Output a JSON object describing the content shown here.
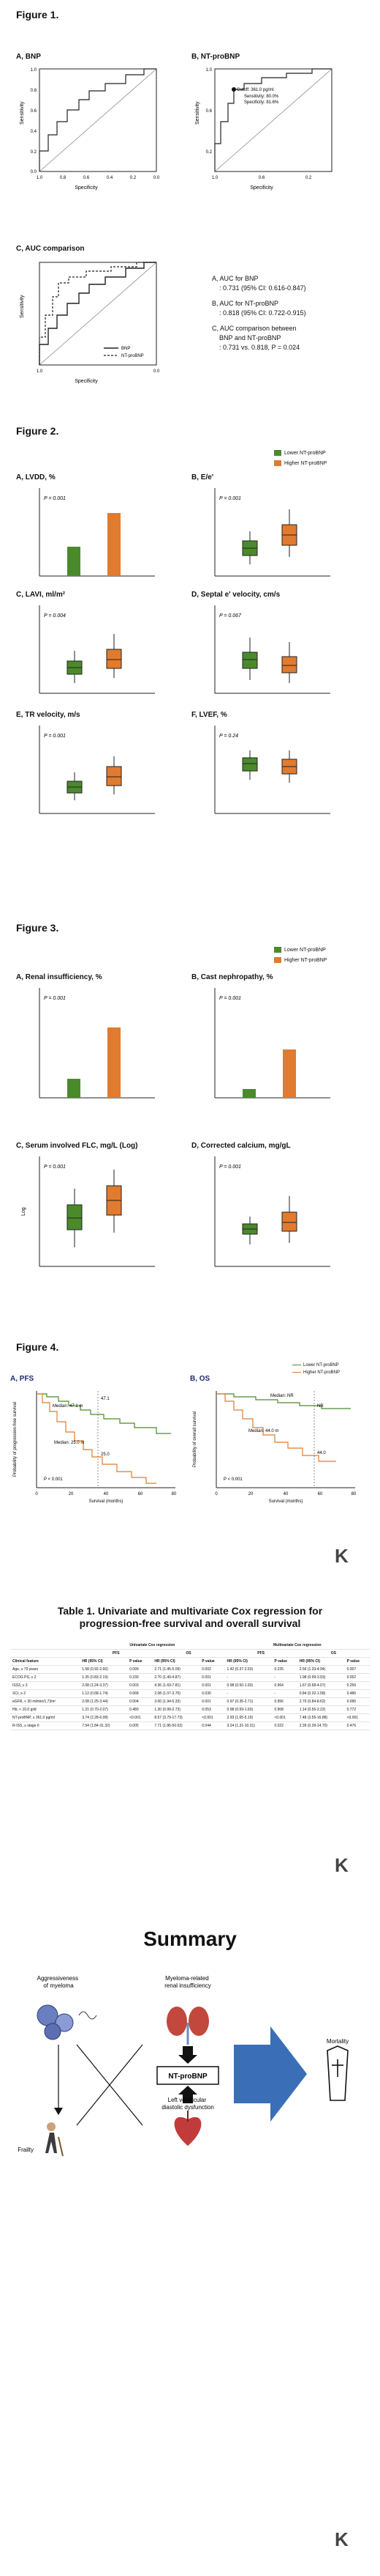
{
  "figure1": {
    "title": "Figure 1.",
    "panelA": {
      "label": "A, BNP",
      "ylabel": "Sensitivity",
      "xlabel": "Specificity"
    },
    "panelB": {
      "label": "B, NT-proBNP",
      "ylabel": "Sensitivity",
      "xlabel": "Specificity",
      "cutoff": "Cutoff: 361.0 pg/ml",
      "sens": "Sensitivity: 80.0%",
      "spec": "Specificity: 81.6%"
    },
    "panelC": {
      "label": "C, AUC comparison",
      "ylabel": "Sensitivity",
      "xlabel": "Specificity",
      "legend1": "BNP",
      "legend2": "NT-proBNP"
    },
    "ticks_y": [
      "1.0",
      "0.8",
      "0.6",
      "0.4",
      "0.2",
      "0.0"
    ],
    "ticks_x": [
      "1.0",
      "0.8",
      "0.6",
      "0.4",
      "0.2",
      "0.0"
    ],
    "notes": [
      {
        "head": "A,  AUC for BNP",
        "body": ": 0.731 (95% CI: 0.616-0.847)"
      },
      {
        "head": "B,  AUC for NT-proBNP",
        "body": ": 0.818 (95% CI: 0.722-0.915)"
      },
      {
        "head": "C,  AUC comparison between",
        "body": "BNP and NT-proBNP",
        "body2": ": 0.731 vs. 0.818, P = 0.024"
      }
    ]
  },
  "figure2": {
    "title": "Figure 2.",
    "legend_lower": "Lower NT-proBNP",
    "legend_higher": "Higher NT-proBNP",
    "panels": [
      {
        "label": "A, LVDD, %",
        "p": "P = 0.001"
      },
      {
        "label": "B, E/e'",
        "p": "P = 0.001"
      },
      {
        "label": "C, LAVI, ml/m²",
        "p": "P = 0.004"
      },
      {
        "label": "D, Septal e' velocity, cm/s",
        "p": "P = 0.067"
      },
      {
        "label": "E, TR velocity, m/s",
        "p": "P = 0.001"
      },
      {
        "label": "F, LVEF, %",
        "p": "P = 0.24"
      }
    ]
  },
  "figure3": {
    "title": "Figure 3.",
    "legend_lower": "Lower NT-proBNP",
    "legend_higher": "Higher NT-proBNP",
    "panels": [
      {
        "label": "A, Renal insufficiency, %",
        "p": "P = 0.001"
      },
      {
        "label": "B, Cast nephropathy, %",
        "p": "P = 0.001"
      },
      {
        "label": "C, Serum involved FLC, mg/L (Log)",
        "p": "P = 0.001",
        "ylabel": "Log"
      },
      {
        "label": "D, Corrected calcium, mg/gL",
        "p": "P = 0.001"
      }
    ]
  },
  "figure4": {
    "title": "Figure 4.",
    "panelA": {
      "label": "A, PFS",
      "ylabel": "Probability of progression-free survival",
      "xlabel": "Survival (months)",
      "p": "P < 0.001",
      "median_low": "Median: 47.1 m",
      "median_high": "Median: 25.0 m",
      "m1": "25.0",
      "m2": "47.1"
    },
    "panelB": {
      "label": "B, OS",
      "ylabel": "Probability of overall survival",
      "xlabel": "Survival (months)",
      "p": "P < 0.001",
      "median_low": "Median: NR",
      "median_high": "Median: 44.0 m",
      "m1": "44.0",
      "m2": "NR"
    },
    "legend_lower": "Lower NT-proBNP",
    "legend_higher": "Higher NT-proBNP",
    "xticks": [
      "0",
      "20",
      "40",
      "60",
      "80"
    ]
  },
  "table1": {
    "title_line1": "Table 1. Univariate and multivariate Cox regression for",
    "title_line2": "progression-free survival and overall survival",
    "group_uni": "Univariate Cox regression",
    "group_multi": "Multivariate Cox regression",
    "sub": [
      "PFS",
      "OS",
      "PFS",
      "OS"
    ],
    "cols": [
      "Clinical feature",
      "HR (95% CI)",
      "P value",
      "HR (95% CI)",
      "P value",
      "HR (95% CI)",
      "P value",
      "HR (95% CI)",
      "P value"
    ],
    "rows": [
      [
        "Age, ≥ 70 years",
        "1.58 (0.92-2.66)",
        "0.099",
        "2.71 (1.45-5.09)",
        "0.002",
        "1.42 (0.37-2.53)",
        "0.225",
        "2.56 (1.33-4.94)",
        "0.007"
      ],
      [
        "ECOG PS, ≥ 2",
        "1.35 (0.83-2.19)",
        "0.230",
        "2.70 (1.49-4.87)",
        "0.001",
        "-",
        "-",
        "1.98 (0.99-3.93)",
        "0.052"
      ],
      [
        "ISS3, ≥ 3",
        "2.08 (1.24-3.37)",
        "0.003",
        "4.36 (1.69-7.81)",
        "0.001",
        "0.98 (0.50-1.93)",
        "0.964",
        "1.67 (0.68-4.07)",
        "0.256"
      ],
      [
        "SCr, ≥ 2",
        "1.12 (0.68-1.74)",
        "0.668",
        "2.08 (1.07-3.70)",
        "0.030",
        "-",
        "-",
        "0.84 (0.32-1.58)",
        "0.486"
      ],
      [
        "eGFR, < 30 ml/min/1.73m²",
        "2.08 (1.25-3.44)",
        "0.004",
        "3.00 (1.94-5.33)",
        "0.001",
        "0.97 (0.35-2.71)",
        "0.956",
        "2.70 (0.84-8.62)",
        "0.095"
      ],
      [
        "Hb, < 10.0 g/dl",
        "1.21 (0.70-2.07)",
        "0.480",
        "1.30 (0.99-2.73)",
        "0.053",
        "0.98 (0.59-1.63)",
        "0.908",
        "1.14 (0.55-2.22)",
        "0.772"
      ],
      [
        "NT-proBNP, ≥ 361.0 pg/ml",
        "3.74 (2.28-6.08)",
        "<0.001",
        "8.57 (3.79-17.73)",
        "<0.001",
        "2.93 (1.65-5.19)",
        "<0.001",
        "7.48 (3.55-16.88)",
        "<0.001"
      ],
      [
        "R-ISS, ≥ stage II",
        "7.54 (1.84-31.32)",
        "0.005",
        "7.71 (1.86-50.02)",
        "0.044",
        "3.24 (1.31-10.31)",
        "0.022",
        "2.39 (0.39-14.70)",
        "0.476"
      ]
    ]
  },
  "summary": {
    "title": "Summary",
    "aggressiveness": "Aggressiveness\nof myeloma",
    "renal": "Myeloma-related\nrenal insufficiency",
    "frailty": "Frailty",
    "lv": "Left ventricular\ndiastolic dysfunction",
    "ntprobnp": "NT-proBNP",
    "mortality": "Mortality"
  },
  "colors": {
    "green": "#4a8a2b",
    "orange": "#e07b2f",
    "dark": "#222222",
    "navy": "#1b2a6b",
    "blue": "#3a6fb7"
  }
}
